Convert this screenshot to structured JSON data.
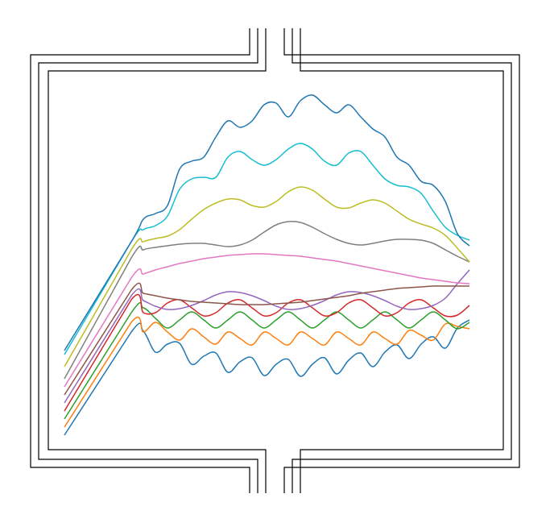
{
  "chart_data": {
    "type": "line",
    "xlim": [
      0,
      503
    ],
    "ylim": [
      0,
      500
    ],
    "x": [
      0,
      83,
      98,
      113,
      128,
      143,
      158,
      173,
      188,
      203,
      218,
      233,
      248,
      263,
      278,
      293,
      308,
      323,
      338,
      353,
      368,
      383,
      398,
      413,
      428,
      443,
      458,
      473,
      488,
      503
    ],
    "series": [
      {
        "color": "#1f77b4",
        "values": [
          20,
          148,
          149,
          123,
          133,
          134,
          108,
          118,
          122,
          98,
          111,
          116,
          94,
          108,
          114,
          93,
          108,
          116,
          96,
          113,
          122,
          105,
          123,
          132,
          115,
          133,
          142,
          128,
          153,
          163
        ]
      },
      {
        "color": "#ff7f0e",
        "values": [
          30,
          160,
          148,
          160,
          148,
          138,
          152,
          142,
          133,
          148,
          140,
          132,
          148,
          140,
          132,
          148,
          140,
          132,
          148,
          140,
          132,
          148,
          140,
          133,
          150,
          144,
          138,
          158,
          155,
          152
        ]
      },
      {
        "color": "#2ca02c",
        "values": [
          40,
          172,
          178,
          165,
          153,
          163,
          173,
          163,
          153,
          163,
          173,
          163,
          153,
          163,
          173,
          163,
          153,
          163,
          173,
          163,
          153,
          163,
          173,
          163,
          153,
          163,
          173,
          163,
          152,
          160
        ]
      },
      {
        "color": "#d62728",
        "values": [
          50,
          188,
          172,
          172,
          184,
          188,
          178,
          168,
          172,
          184,
          188,
          178,
          168,
          172,
          184,
          188,
          178,
          168,
          172,
          184,
          188,
          178,
          168,
          172,
          184,
          188,
          178,
          168,
          169,
          181
        ]
      },
      {
        "color": "#9467bd",
        "values": [
          60,
          193,
          187,
          180,
          176,
          177,
          181,
          187,
          194,
          198,
          197,
          193,
          187,
          180,
          176,
          177,
          181,
          187,
          194,
          198,
          197,
          193,
          187,
          180,
          176,
          177,
          181,
          190,
          208,
          225
        ]
      },
      {
        "color": "#8c564b",
        "values": [
          70,
          200,
          196,
          193,
          190,
          188,
          186,
          185,
          184,
          183,
          182,
          182,
          182,
          183,
          184,
          185,
          187,
          189,
          191,
          193,
          196,
          198,
          200,
          202,
          203,
          204,
          205,
          205,
          205,
          205
        ]
      },
      {
        "color": "#e377c2",
        "values": [
          80,
          215,
          220,
          225,
          229,
          233,
          236,
          239,
          241,
          243,
          244,
          245,
          245,
          244,
          243,
          242,
          240,
          238,
          236,
          233,
          230,
          227,
          224,
          221,
          218,
          215,
          213,
          211,
          209,
          208
        ]
      },
      {
        "color": "#7f7f7f",
        "values": [
          90,
          240,
          250,
          253,
          255,
          257,
          258,
          258,
          256,
          254,
          256,
          262,
          272,
          281,
          285,
          284,
          278,
          270,
          263,
          258,
          256,
          258,
          261,
          263,
          263,
          262,
          258,
          250,
          242,
          235
        ]
      },
      {
        "color": "#bcbd22",
        "values": [
          105,
          250,
          260,
          264,
          267,
          275,
          288,
          300,
          308,
          313,
          312,
          305,
          303,
          310,
          322,
          328,
          324,
          313,
          303,
          302,
          308,
          312,
          308,
          298,
          288,
          282,
          277,
          268,
          252,
          235
        ]
      },
      {
        "color": "#17becf",
        "values": [
          120,
          260,
          275,
          280,
          292,
          325,
          338,
          340,
          340,
          365,
          372,
          362,
          355,
          362,
          375,
          382,
          375,
          360,
          355,
          370,
          372,
          355,
          338,
          330,
          328,
          320,
          298,
          278,
          268,
          262
        ]
      },
      {
        "color": "#1f77b4",
        "values": [
          125,
          260,
          288,
          295,
          305,
          350,
          360,
          365,
          390,
          410,
          402,
          410,
          430,
          432,
          415,
          435,
          442,
          430,
          420,
          430,
          415,
          400,
          390,
          365,
          355,
          335,
          330,
          310,
          270,
          255
        ]
      }
    ]
  }
}
